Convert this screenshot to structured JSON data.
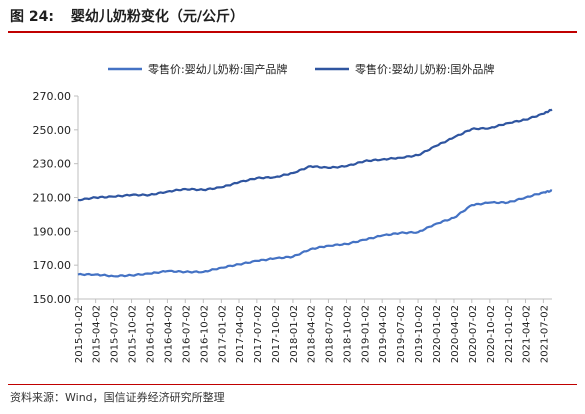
{
  "figure": {
    "number": "图 24:",
    "title": "婴幼儿奶粉变化（元/公斤）",
    "source": "资料来源：Wind，国信证券经济研究所整理"
  },
  "colors": {
    "domestic": "#4472c4",
    "foreign": "#2f55a0",
    "rule": "#c00000",
    "axis": "#bfbfbf"
  },
  "chart_data": {
    "type": "line",
    "title": "",
    "xlabel": "",
    "ylabel": "",
    "ylim": [
      150,
      270
    ],
    "yticks": [
      "270.00",
      "250.00",
      "230.00",
      "210.00",
      "190.00",
      "170.00",
      "150.00"
    ],
    "grid": false,
    "legend_position": "top",
    "xticks": [
      "2015-01-02",
      "2015-04-02",
      "2015-07-02",
      "2015-10-02",
      "2016-01-02",
      "2016-04-02",
      "2016-07-02",
      "2016-10-02",
      "2017-01-02",
      "2017-04-02",
      "2017-07-02",
      "2017-10-02",
      "2018-01-02",
      "2018-04-02",
      "2018-07-02",
      "2018-10-02",
      "2019-01-02",
      "2019-04-02",
      "2019-07-02",
      "2019-10-02",
      "2020-01-02",
      "2020-04-02",
      "2020-07-02",
      "2020-10-02",
      "2021-01-02",
      "2021-04-02",
      "2021-07-02"
    ],
    "x": [
      "2015-01-02",
      "2015-04-02",
      "2015-07-02",
      "2015-10-02",
      "2016-01-02",
      "2016-04-02",
      "2016-07-02",
      "2016-10-02",
      "2017-01-02",
      "2017-04-02",
      "2017-07-02",
      "2017-10-02",
      "2018-01-02",
      "2018-04-02",
      "2018-07-02",
      "2018-10-02",
      "2019-01-02",
      "2019-04-02",
      "2019-07-02",
      "2019-10-02",
      "2020-01-02",
      "2020-04-02",
      "2020-07-02",
      "2020-10-02",
      "2021-01-02",
      "2021-04-02",
      "2021-07-02",
      "2021-08-15"
    ],
    "series": [
      {
        "name": "零售价:婴幼儿奶粉:国产品牌",
        "values": [
          164.5,
          164.5,
          163.5,
          164.0,
          165.0,
          166.5,
          166.0,
          166.0,
          168.5,
          170.5,
          172.5,
          174.0,
          175.0,
          179.5,
          181.5,
          182.5,
          185.0,
          187.5,
          189.0,
          189.5,
          194.5,
          198.0,
          205.5,
          207.0,
          207.0,
          210.0,
          213.0,
          214.0
        ]
      },
      {
        "name": "零售价:婴幼儿奶粉:国外品牌",
        "values": [
          208.5,
          210.0,
          210.5,
          211.5,
          211.5,
          213.5,
          215.0,
          214.5,
          216.0,
          219.0,
          221.5,
          222.0,
          224.5,
          228.5,
          227.5,
          228.5,
          231.5,
          232.5,
          233.5,
          235.0,
          240.5,
          245.5,
          250.5,
          251.0,
          254.0,
          256.0,
          259.5,
          262.0
        ]
      }
    ]
  }
}
